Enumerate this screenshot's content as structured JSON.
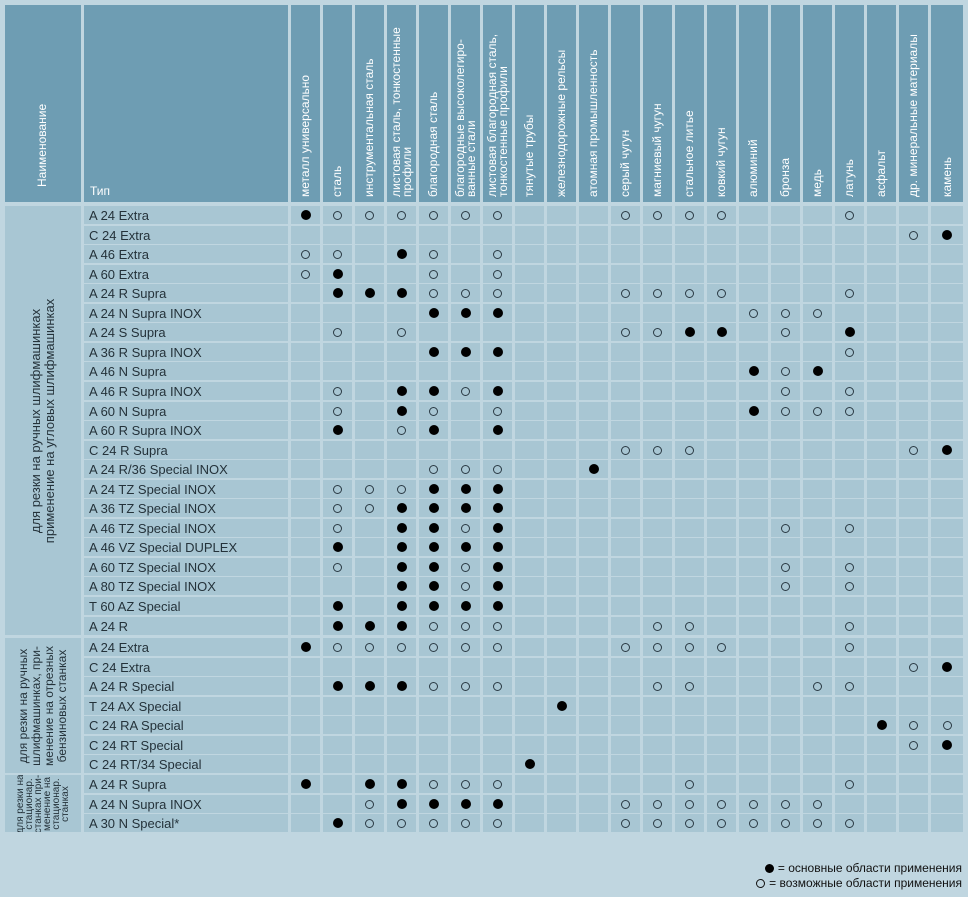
{
  "header": {
    "name_label": "Наименование",
    "type_label": "Тип",
    "columns": [
      "металл универсально",
      "сталь",
      "инструментальная сталь",
      "листовая сталь, тонкостенные\nпрофили",
      "благородная сталь",
      "благородные высоколегиро-\nванные стали",
      "листовая благородная сталь,\nтонкостенные профили",
      "тянутые трубы",
      "железнодорожные рельсы",
      "атомная промышленность",
      "серый чугун",
      "магниевый чугун",
      "стальное литье",
      "ковкий чугун",
      "алюминий",
      "бронза",
      "медь",
      "латунь",
      "асфальт",
      "др. минеральные материалы",
      "камень"
    ]
  },
  "groups": [
    {
      "label": "для резки на ручных шлифмашинках\nприменение на угловых шлифмашинках",
      "rows": [
        {
          "type": "A 24 Extra",
          "marks": "FOOOOOO...OOOO...O..."
        },
        {
          "type": "C 24 Extra",
          "marks": "...................OF"
        },
        {
          "type": "A 46 Extra",
          "marks": "OO.FO.O.............."
        },
        {
          "type": "A 60 Extra",
          "marks": "OF..O.O.............."
        },
        {
          "type": "A 24 R Supra",
          "marks": ".FFFOOO...OOOO...O..."
        },
        {
          "type": "A 24 N Supra INOX",
          "marks": "....FFF.......OOO...."
        },
        {
          "type": "A 24 S Supra",
          "marks": ".O.O......OOFF.O.F..."
        },
        {
          "type": "A 36 R Supra INOX",
          "marks": "....FFF..........O..."
        },
        {
          "type": "A 46 N Supra",
          "marks": "..............FOF...."
        },
        {
          "type": "A 46 R Supra INOX",
          "marks": ".O.FFOF........O.O..."
        },
        {
          "type": "A 60 N Supra",
          "marks": ".O.FO.O.......FOOO..."
        },
        {
          "type": "A 60 R Supra INOX",
          "marks": ".F.OF.F.............."
        },
        {
          "type": "C 24 R Supra",
          "marks": "..........OOO......OF"
        },
        {
          "type": "A 24 R/36 Special INOX",
          "marks": "....OOO..F..........."
        },
        {
          "type": "A 24 TZ Special INOX",
          "marks": ".OOOFFF.............."
        },
        {
          "type": "A 36 TZ Special INOX",
          "marks": ".OOFFFF.............."
        },
        {
          "type": "A 46 TZ Special INOX",
          "marks": ".O.FFOF........O.O..."
        },
        {
          "type": "A 46 VZ Special DUPLEX",
          "marks": ".F.FFFF.............."
        },
        {
          "type": "A 60 TZ Special INOX",
          "marks": ".O.FFOF........O.O..."
        },
        {
          "type": "A 80 TZ Special INOX",
          "marks": "...FFOF........O.O..."
        },
        {
          "type": "T 60 AZ Special",
          "marks": ".F.FFFF.............."
        },
        {
          "type": "A 24 R",
          "marks": ".FFFOOO....OO....O..."
        }
      ]
    },
    {
      "label": "для резки на ручных\nшлифмашинках, при-\nменение на отрезных\nбензиновых станках",
      "rows": [
        {
          "type": "A 24 Extra",
          "marks": "FOOOOOO...OOOO...O..."
        },
        {
          "type": "C 24 Extra",
          "marks": "...................OF"
        },
        {
          "type": "A 24 R Special",
          "marks": ".FFFOOO....OO...OO..."
        },
        {
          "type": "T 24 AX Special",
          "marks": "........F............"
        },
        {
          "type": "C 24 RA Special",
          "marks": "..................FOO"
        },
        {
          "type": "C 24 RT Special",
          "marks": "...................OF"
        },
        {
          "type": "C 24 RT/34 Special",
          "marks": ".......F............."
        }
      ]
    },
    {
      "label": "для резки на\nстационар.\nстанках при-\nменение на\nстационар.\nстанках",
      "rows": [
        {
          "type": "A 24 R Supra",
          "marks": "F.FFOOO.....O....O..."
        },
        {
          "type": "A 24 N Supra INOX",
          "marks": "..OFFFF...OOOOOOO...."
        },
        {
          "type": "A 30 N Special*",
          "marks": ".FOOOOO...OOOOOOOO..."
        }
      ]
    }
  ],
  "legend": {
    "full": "= основные области применения",
    "open": "= возможные области применения"
  }
}
